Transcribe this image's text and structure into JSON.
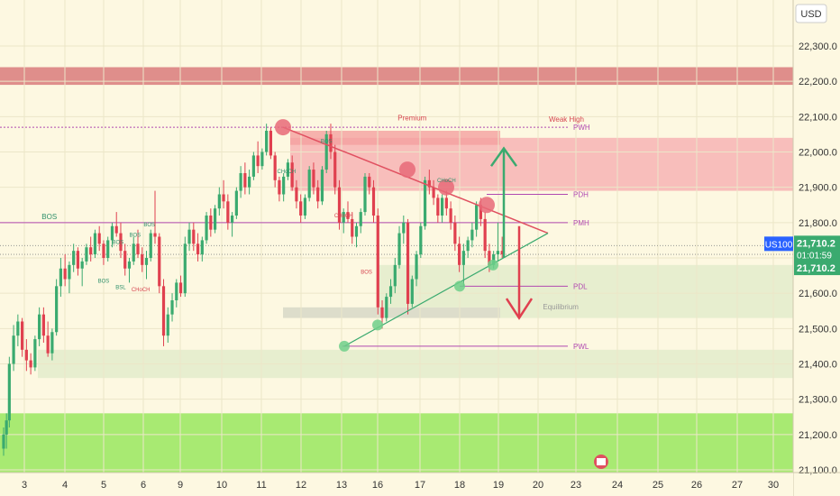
{
  "chart_data": {
    "type": "candlestick",
    "symbol": "US100",
    "currency": "USD",
    "last_price": "21,710.2",
    "countdown": "01:01:59",
    "last_price_secondary": "21,710.2",
    "ylim": [
      21100,
      22400
    ],
    "y_ticks": [
      {
        "value": 21100,
        "label": "21,100.0"
      },
      {
        "value": 21200,
        "label": "21,200.0"
      },
      {
        "value": 21300,
        "label": "21,300.0"
      },
      {
        "value": 21400,
        "label": "21,400.0"
      },
      {
        "value": 21500,
        "label": "21,500.0"
      },
      {
        "value": 21600,
        "label": "21,600.0"
      },
      {
        "value": 21700,
        "label": "21,700.0"
      },
      {
        "value": 21800,
        "label": "21,800.0"
      },
      {
        "value": 21900,
        "label": "21,900.0"
      },
      {
        "value": 22000,
        "label": "22,000.0"
      },
      {
        "value": 22100,
        "label": "22,100.0"
      },
      {
        "value": 22200,
        "label": "22,200.0"
      },
      {
        "value": 22300,
        "label": "22,300.0"
      }
    ],
    "x_ticks": [
      {
        "day": 3,
        "label": "3"
      },
      {
        "day": 4,
        "label": "4"
      },
      {
        "day": 5,
        "label": "5"
      },
      {
        "day": 6,
        "label": "6"
      },
      {
        "day": 9,
        "label": "9"
      },
      {
        "day": 10,
        "label": "10"
      },
      {
        "day": 11,
        "label": "11"
      },
      {
        "day": 12,
        "label": "12"
      },
      {
        "day": 13,
        "label": "13"
      },
      {
        "day": 16,
        "label": "16"
      },
      {
        "day": 17,
        "label": "17"
      },
      {
        "day": 18,
        "label": "18"
      },
      {
        "day": 19,
        "label": "19"
      },
      {
        "day": 20,
        "label": "20"
      },
      {
        "day": 23,
        "label": "23"
      },
      {
        "day": 24,
        "label": "24"
      },
      {
        "day": 25,
        "label": "25"
      },
      {
        "day": 26,
        "label": "26"
      },
      {
        "day": 27,
        "label": "27"
      },
      {
        "day": 30,
        "label": "30"
      }
    ],
    "zones": [
      {
        "label": "",
        "y1": 22240,
        "y2": 22190,
        "color": "#d97b7b"
      },
      {
        "label": "Premium",
        "y1": 22040,
        "y2": 21890,
        "color": "#f7b7b7"
      },
      {
        "label": "",
        "y1": 21680,
        "y2": 21530,
        "color": "#e4eccd"
      },
      {
        "label": "",
        "y1": 21440,
        "y2": 21360,
        "color": "#e4eccd"
      },
      {
        "label": "",
        "y1": 21260,
        "y2": 21090,
        "color": "#9ee866"
      }
    ],
    "levels": [
      {
        "label": "PWH",
        "value": 22070,
        "color": "#b149b1"
      },
      {
        "label": "PDH",
        "value": 21880,
        "color": "#b149b1"
      },
      {
        "label": "PMH",
        "value": 21800,
        "color": "#b149b1"
      },
      {
        "label": "PDL",
        "value": 21620,
        "color": "#b149b1"
      },
      {
        "label": "PWL",
        "value": 21450,
        "color": "#b149b1"
      }
    ],
    "annotations": [
      {
        "text": "Premium",
        "day": 14.3,
        "value": 22090,
        "color": "#d64550"
      },
      {
        "text": "Weak High",
        "day": 19.7,
        "value": 22085,
        "color": "#d64550"
      },
      {
        "text": "BOS",
        "day": 1.6,
        "value": 21810,
        "color": "#2d8f6a"
      },
      {
        "text": "Equilibrium",
        "day": 19.5,
        "value": 21555,
        "color": "#999999"
      },
      {
        "text": "BOS",
        "day": 3.5,
        "value": 21630,
        "color": "#2d8f6a"
      },
      {
        "text": "BSL",
        "day": 4.1,
        "value": 21612,
        "color": "#2d8f6a"
      },
      {
        "text": "CHoCH",
        "day": 4.8,
        "value": 21605,
        "color": "#d64550"
      },
      {
        "text": "BOS",
        "day": 4.0,
        "value": 21740,
        "color": "#2d8f6a"
      },
      {
        "text": "BOS",
        "day": 4.6,
        "value": 21760,
        "color": "#2d8f6a"
      },
      {
        "text": "BOS",
        "day": 5.1,
        "value": 21790,
        "color": "#2d8f6a"
      },
      {
        "text": "CHoCH",
        "day": 9.9,
        "value": 21940,
        "color": "#2d8f6a"
      },
      {
        "text": "BOS",
        "day": 11.3,
        "value": 22025,
        "color": "#2d8f6a"
      },
      {
        "text": "CHoCH",
        "day": 11.9,
        "value": 21815,
        "color": "#d64550"
      },
      {
        "text": "BOS",
        "day": 12.7,
        "value": 21655,
        "color": "#d64550"
      },
      {
        "text": "CHoCH",
        "day": 15.5,
        "value": 21915,
        "color": "#2d8f6a"
      }
    ],
    "candles": [
      [
        0.0,
        21160,
        21220,
        21140,
        21200
      ],
      [
        0.1,
        21200,
        21260,
        21160,
        21240
      ],
      [
        0.2,
        21240,
        21420,
        21220,
        21400
      ],
      [
        0.35,
        21400,
        21510,
        21380,
        21480
      ],
      [
        0.5,
        21480,
        21540,
        21450,
        21520
      ],
      [
        0.65,
        21520,
        21530,
        21420,
        21440
      ],
      [
        0.8,
        21440,
        21470,
        21380,
        21410
      ],
      [
        0.95,
        21410,
        21430,
        21370,
        21390
      ],
      [
        1.1,
        21390,
        21480,
        21380,
        21470
      ],
      [
        1.25,
        21470,
        21560,
        21450,
        21540
      ],
      [
        1.4,
        21540,
        21560,
        21460,
        21480
      ],
      [
        1.55,
        21480,
        21520,
        21420,
        21430
      ],
      [
        1.7,
        21430,
        21500,
        21410,
        21490
      ],
      [
        1.85,
        21490,
        21640,
        21480,
        21620
      ],
      [
        2.0,
        21620,
        21700,
        21590,
        21670
      ],
      [
        2.15,
        21670,
        21710,
        21620,
        21640
      ],
      [
        2.3,
        21640,
        21690,
        21600,
        21680
      ],
      [
        2.45,
        21680,
        21740,
        21660,
        21720
      ],
      [
        2.6,
        21720,
        21730,
        21650,
        21670
      ],
      [
        2.75,
        21670,
        21700,
        21620,
        21690
      ],
      [
        2.9,
        21690,
        21740,
        21680,
        21730
      ],
      [
        3.05,
        21730,
        21760,
        21690,
        21710
      ],
      [
        3.2,
        21710,
        21780,
        21700,
        21770
      ],
      [
        3.35,
        21770,
        21790,
        21720,
        21740
      ],
      [
        3.5,
        21740,
        21750,
        21680,
        21700
      ],
      [
        3.65,
        21700,
        21760,
        21690,
        21750
      ],
      [
        3.8,
        21750,
        21800,
        21730,
        21790
      ],
      [
        3.95,
        21790,
        21830,
        21760,
        21770
      ],
      [
        4.1,
        21770,
        21800,
        21700,
        21720
      ],
      [
        4.25,
        21720,
        21740,
        21650,
        21670
      ],
      [
        4.4,
        21670,
        21700,
        21630,
        21690
      ],
      [
        4.55,
        21690,
        21760,
        21680,
        21740
      ],
      [
        4.7,
        21740,
        21780,
        21700,
        21710
      ],
      [
        4.85,
        21710,
        21730,
        21660,
        21680
      ],
      [
        5.0,
        21680,
        21720,
        21640,
        21700
      ],
      [
        5.15,
        21700,
        21780,
        21690,
        21770
      ],
      [
        5.3,
        21770,
        21890,
        21740,
        21760
      ],
      [
        5.45,
        21760,
        21770,
        21600,
        21620
      ],
      [
        5.6,
        21620,
        21640,
        21450,
        21480
      ],
      [
        5.75,
        21480,
        21560,
        21460,
        21540
      ],
      [
        5.9,
        21540,
        21600,
        21520,
        21580
      ],
      [
        6.05,
        21580,
        21640,
        21560,
        21630
      ],
      [
        6.2,
        21630,
        21650,
        21590,
        21600
      ],
      [
        6.35,
        21600,
        21760,
        21590,
        21740
      ],
      [
        6.5,
        21740,
        21800,
        21720,
        21780
      ],
      [
        6.65,
        21780,
        21800,
        21720,
        21740
      ],
      [
        6.8,
        21740,
        21770,
        21690,
        21710
      ],
      [
        6.95,
        21710,
        21760,
        21690,
        21750
      ],
      [
        7.1,
        21750,
        21830,
        21740,
        21820
      ],
      [
        7.25,
        21820,
        21840,
        21760,
        21780
      ],
      [
        7.4,
        21780,
        21850,
        21770,
        21840
      ],
      [
        7.55,
        21840,
        21900,
        21820,
        21880
      ],
      [
        7.7,
        21880,
        21920,
        21840,
        21860
      ],
      [
        7.85,
        21860,
        21880,
        21780,
        21800
      ],
      [
        8.0,
        21800,
        21830,
        21760,
        21820
      ],
      [
        8.15,
        21820,
        21900,
        21810,
        21890
      ],
      [
        8.3,
        21890,
        21960,
        21870,
        21940
      ],
      [
        8.45,
        21940,
        21970,
        21880,
        21900
      ],
      [
        8.6,
        21900,
        21950,
        21880,
        21930
      ],
      [
        8.75,
        21930,
        22000,
        21920,
        21990
      ],
      [
        8.9,
        21990,
        22030,
        21940,
        21960
      ],
      [
        9.05,
        21960,
        22010,
        21950,
        22000
      ],
      [
        9.2,
        22000,
        22080,
        21990,
        22060
      ],
      [
        9.35,
        22060,
        22070,
        21980,
        21990
      ],
      [
        9.5,
        21990,
        22000,
        21900,
        21920
      ],
      [
        9.65,
        21920,
        21930,
        21860,
        21880
      ],
      [
        9.8,
        21880,
        21940,
        21860,
        21930
      ],
      [
        9.95,
        21930,
        21980,
        21920,
        21970
      ],
      [
        10.1,
        21970,
        21990,
        21890,
        21900
      ],
      [
        10.25,
        21900,
        21920,
        21840,
        21860
      ],
      [
        10.4,
        21860,
        21880,
        21800,
        21820
      ],
      [
        10.55,
        21820,
        21880,
        21810,
        21870
      ],
      [
        10.7,
        21870,
        21960,
        21860,
        21950
      ],
      [
        10.85,
        21950,
        21970,
        21880,
        21900
      ],
      [
        11.0,
        21900,
        21920,
        21840,
        21860
      ],
      [
        11.15,
        21860,
        21960,
        21850,
        21950
      ],
      [
        11.3,
        21950,
        22060,
        21940,
        22050
      ],
      [
        11.45,
        22050,
        22080,
        21980,
        22000
      ],
      [
        11.6,
        22000,
        22020,
        21880,
        21900
      ],
      [
        11.75,
        21900,
        21920,
        21780,
        21800
      ],
      [
        11.9,
        21800,
        21840,
        21770,
        21830
      ],
      [
        12.05,
        21830,
        21860,
        21800,
        21810
      ],
      [
        12.2,
        21810,
        21830,
        21740,
        21760
      ],
      [
        12.35,
        21760,
        21800,
        21730,
        21790
      ],
      [
        12.5,
        21790,
        21840,
        21770,
        21830
      ],
      [
        12.65,
        21830,
        21940,
        21820,
        21930
      ],
      [
        12.8,
        21930,
        21940,
        21880,
        21900
      ],
      [
        12.95,
        21900,
        21920,
        21800,
        21820
      ],
      [
        13.1,
        21820,
        21840,
        21540,
        21560
      ],
      [
        13.25,
        21560,
        21580,
        21500,
        21530
      ],
      [
        13.4,
        21530,
        21600,
        21520,
        21590
      ],
      [
        13.55,
        21590,
        21640,
        21570,
        21620
      ],
      [
        13.7,
        21620,
        21700,
        21600,
        21680
      ],
      [
        13.85,
        21680,
        21790,
        21670,
        21770
      ],
      [
        14.0,
        21770,
        21820,
        21740,
        21800
      ],
      [
        14.15,
        21800,
        21810,
        21540,
        21570
      ],
      [
        14.3,
        21570,
        21650,
        21560,
        21640
      ],
      [
        14.45,
        21640,
        21720,
        21620,
        21710
      ],
      [
        14.6,
        21710,
        21800,
        21700,
        21790
      ],
      [
        14.75,
        21790,
        21930,
        21780,
        21920
      ],
      [
        14.9,
        21920,
        21950,
        21880,
        21900
      ],
      [
        15.05,
        21900,
        21920,
        21850,
        21870
      ],
      [
        15.2,
        21870,
        21880,
        21800,
        21820
      ],
      [
        15.35,
        21820,
        21880,
        21800,
        21870
      ],
      [
        15.5,
        21870,
        21890,
        21820,
        21840
      ],
      [
        15.65,
        21840,
        21860,
        21780,
        21800
      ],
      [
        15.8,
        21800,
        21820,
        21720,
        21740
      ],
      [
        15.95,
        21740,
        21760,
        21660,
        21680
      ],
      [
        16.1,
        21680,
        21740,
        21620,
        21720
      ],
      [
        16.25,
        21720,
        21760,
        21700,
        21750
      ],
      [
        16.4,
        21750,
        21800,
        21730,
        21780
      ],
      [
        16.55,
        21780,
        21860,
        21760,
        21850
      ],
      [
        16.7,
        21850,
        21870,
        21790,
        21810
      ],
      [
        16.85,
        21810,
        21830,
        21700,
        21720
      ],
      [
        17.0,
        21720,
        21740,
        21660,
        21680
      ],
      [
        17.15,
        21680,
        21720,
        21670,
        21710
      ],
      [
        17.3,
        21710,
        21800,
        21690,
        21720
      ],
      [
        17.45,
        21720,
        21760,
        21700,
        21710
      ]
    ]
  }
}
